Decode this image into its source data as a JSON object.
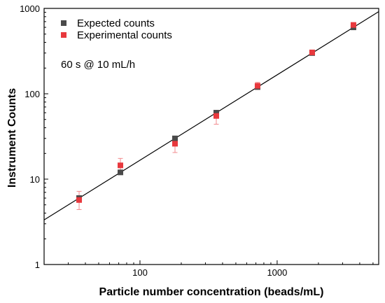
{
  "chart_data": {
    "type": "scatter",
    "x_scale": "log",
    "y_scale": "log",
    "xlabel": "Particle number concentration (beads/mL)",
    "ylabel": "Instrument Counts",
    "xlim": [
      20,
      5500
    ],
    "ylim": [
      1,
      1000
    ],
    "x_ticks": [
      {
        "value": 100,
        "label": "100"
      },
      {
        "value": 1000,
        "label": "1000"
      }
    ],
    "y_ticks": [
      {
        "value": 1,
        "label": "1"
      },
      {
        "value": 10,
        "label": "10"
      },
      {
        "value": 100,
        "label": "100"
      },
      {
        "value": 1000,
        "label": "1000"
      }
    ],
    "grid": false,
    "legend_position": "top-left",
    "annotation": "60 s @ 10 mL/h",
    "series": [
      {
        "name": "Expected counts",
        "color": "#4a4a4a",
        "marker": "square",
        "points": [
          {
            "x": 36,
            "y": 6.0
          },
          {
            "x": 72,
            "y": 12.0
          },
          {
            "x": 180,
            "y": 30.0
          },
          {
            "x": 360,
            "y": 60.0
          },
          {
            "x": 720,
            "y": 120.0
          },
          {
            "x": 1800,
            "y": 300.0
          },
          {
            "x": 3600,
            "y": 600.0
          }
        ]
      },
      {
        "name": "Experimental counts",
        "color": "#e8383d",
        "error_color": "#f28a8d",
        "marker": "square",
        "points": [
          {
            "x": 36,
            "y": 5.7,
            "err_low": 4.4,
            "err_high": 7.2
          },
          {
            "x": 72,
            "y": 14.5,
            "err_low": 12.0,
            "err_high": 17.5
          },
          {
            "x": 180,
            "y": 26.0,
            "err_low": 20.5,
            "err_high": 31.5
          },
          {
            "x": 360,
            "y": 55.0,
            "err_low": 44.0,
            "err_high": 64.0
          },
          {
            "x": 720,
            "y": 124.0,
            "err_low": 112.0,
            "err_high": 136.0
          },
          {
            "x": 1800,
            "y": 305.0,
            "err_low": 292.0,
            "err_high": 318.0
          },
          {
            "x": 3600,
            "y": 640.0,
            "err_low": 610.0,
            "err_high": 670.0
          }
        ]
      }
    ],
    "fit_line": {
      "color": "#000000",
      "points": [
        {
          "x": 20,
          "y": 3.33
        },
        {
          "x": 5500,
          "y": 916.7
        }
      ]
    }
  }
}
